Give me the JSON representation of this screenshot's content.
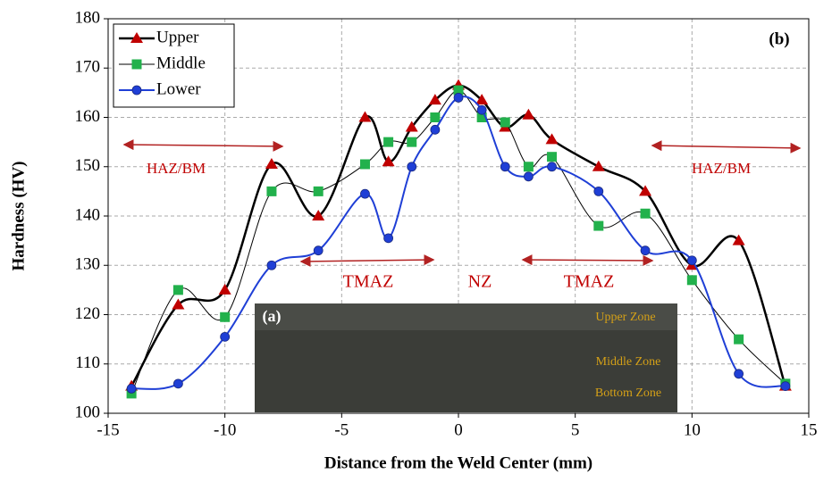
{
  "chart_data": {
    "type": "line",
    "x_label": "Distance from the Weld Center (mm)",
    "y_label": "Hardness (HV)",
    "x": [
      -14,
      -12,
      -10,
      -8,
      -6,
      -4,
      -3,
      -2,
      -1,
      0,
      1,
      2,
      3,
      4,
      6,
      8,
      10,
      12,
      14
    ],
    "series": [
      {
        "name": "Upper",
        "color": "#c00000",
        "line_color": "#000000",
        "line_width": 2.5,
        "marker": "triangle",
        "values": [
          105.5,
          122,
          125,
          150.5,
          140,
          160,
          151,
          158,
          163.5,
          166.5,
          163.5,
          158,
          160.5,
          155.5,
          150,
          145,
          130,
          135,
          105.5
        ]
      },
      {
        "name": "Middle",
        "color": "#22b14c",
        "line_color": "#000000",
        "line_width": 1,
        "marker": "square",
        "values": [
          104,
          125,
          119.5,
          145,
          145,
          150.5,
          155,
          155,
          160,
          165.5,
          160,
          159,
          150,
          152,
          138,
          140.5,
          127,
          115,
          106
        ]
      },
      {
        "name": "Lower",
        "color": "#1f3fd6",
        "line_color": "#1f3fd6",
        "line_width": 2,
        "marker": "circle",
        "values": [
          105,
          106,
          115.5,
          130,
          133,
          144.5,
          135.5,
          150,
          157.5,
          164,
          161.5,
          150,
          148,
          150,
          145,
          133,
          131,
          108,
          105.5
        ]
      }
    ],
    "xlim": [
      -15,
      15
    ],
    "xticks": [
      -15,
      -10,
      -5,
      0,
      5,
      10,
      15
    ],
    "ylim": [
      100,
      180
    ],
    "yticks": [
      100,
      110,
      120,
      130,
      140,
      150,
      160,
      170,
      180
    ],
    "grid": true,
    "legend": "upper left",
    "annotations": [
      "HAZ/BM",
      "HAZ/BM",
      "TMAZ",
      "NZ",
      "TMAZ",
      "(b)",
      "(a)",
      "Upper Zone",
      "Middle Zone",
      "Bottom Zone"
    ]
  }
}
